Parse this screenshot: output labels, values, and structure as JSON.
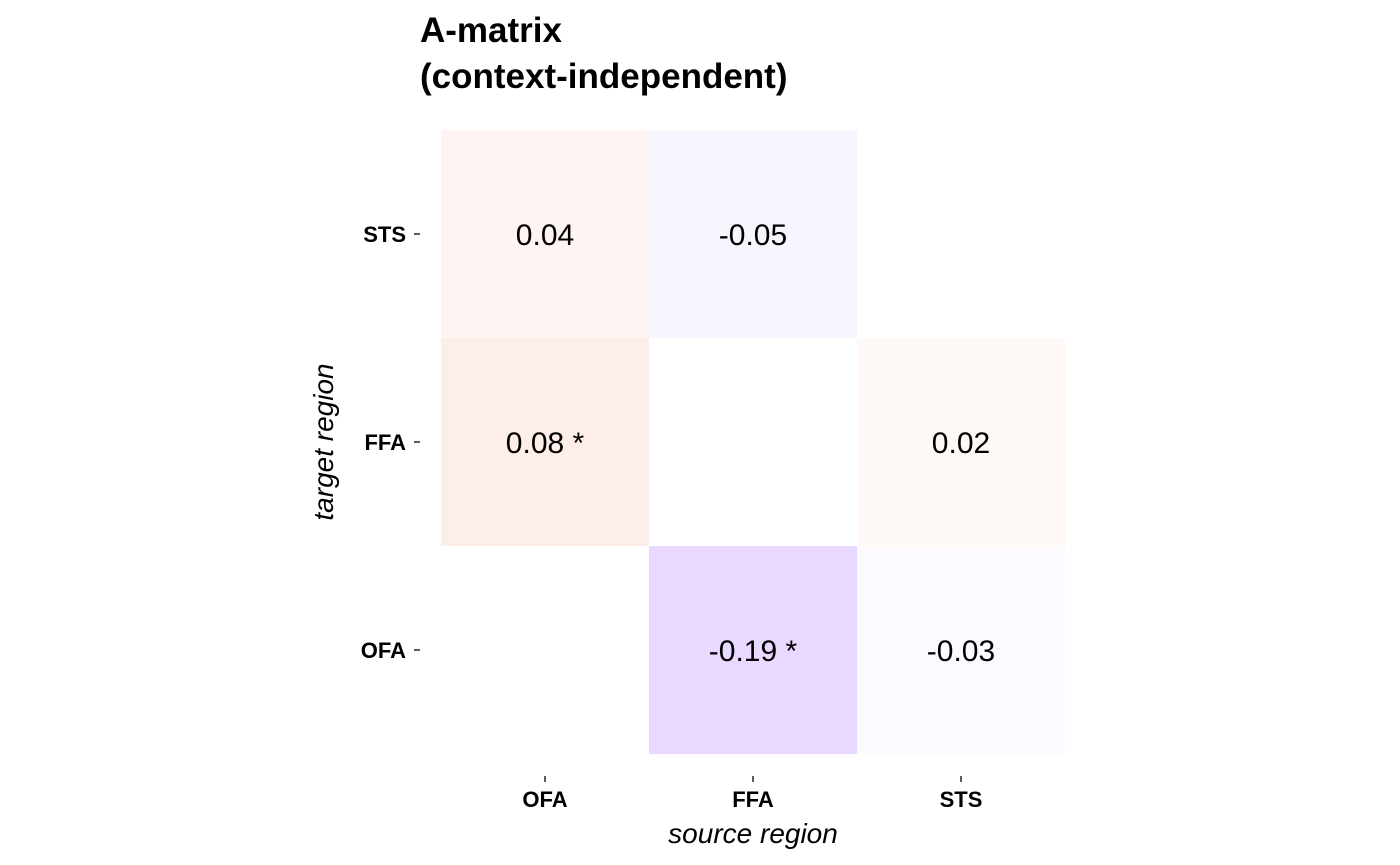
{
  "chart_data": {
    "type": "heatmap",
    "title": [
      "A-matrix",
      "(context-independent)"
    ],
    "xlabel": "source region",
    "ylabel": "target region",
    "x_categories": [
      "OFA",
      "FFA",
      "STS"
    ],
    "y_categories": [
      "OFA",
      "FFA",
      "STS"
    ],
    "colors": {
      "positive": "#fde3dc",
      "negative": "#e9d8ff",
      "background": "#ffffff"
    },
    "color_scale_max": 0.19,
    "cells": [
      {
        "source": "OFA",
        "target": "STS",
        "value": 0.04,
        "label": "0.04",
        "significant": false
      },
      {
        "source": "FFA",
        "target": "STS",
        "value": -0.05,
        "label": "-0.05",
        "significant": false
      },
      {
        "source": "OFA",
        "target": "FFA",
        "value": 0.08,
        "label": "0.08 *",
        "significant": true
      },
      {
        "source": "STS",
        "target": "FFA",
        "value": 0.02,
        "label": "0.02",
        "significant": false
      },
      {
        "source": "FFA",
        "target": "OFA",
        "value": -0.19,
        "label": "-0.19 *",
        "significant": true
      },
      {
        "source": "STS",
        "target": "OFA",
        "value": -0.03,
        "label": "-0.03",
        "significant": false
      }
    ]
  }
}
